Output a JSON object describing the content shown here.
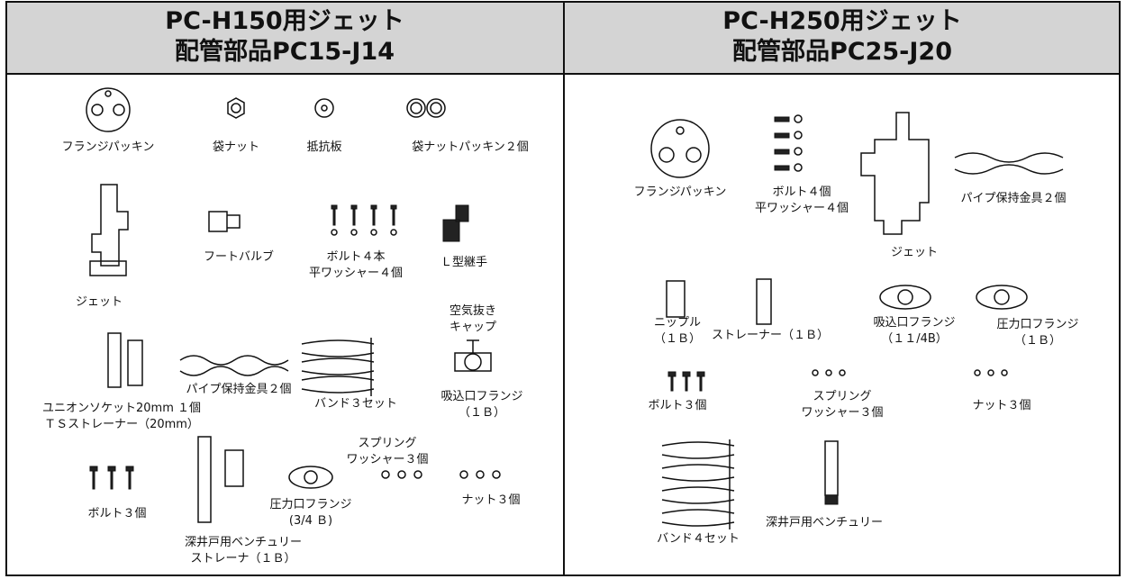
{
  "columns": [
    {
      "header": [
        "PC-H150用ジェット",
        "配管部品PC15-J14"
      ],
      "parts": [
        [
          "フランジパッキン"
        ],
        [
          "袋ナット"
        ],
        [
          "抵抗板"
        ],
        [
          "袋ナットパッキン２個"
        ],
        [
          "フートバルブ"
        ],
        [
          "ボルト４本",
          "平ワッシャー４個"
        ],
        [
          "Ｌ型継手"
        ],
        [
          "ジェット"
        ],
        [
          "空気抜き",
          "キャップ"
        ],
        [
          "パイプ保持金具２個"
        ],
        [
          "バンド３セット"
        ],
        [
          "吸込口フランジ",
          "（１Ｂ）"
        ],
        [
          "ユニオンソケット20mm １個",
          "ＴＳストレーナー（20mm）"
        ],
        [
          "スプリング",
          "ワッシャー３個"
        ],
        [
          "ボルト３個"
        ],
        [
          "圧力口フランジ",
          "(3/4 Ｂ)"
        ],
        [
          "ナット３個"
        ],
        [
          "深井戸用ベンチュリー",
          "ストレーナ（１Ｂ）"
        ]
      ]
    },
    {
      "header": [
        "PC-H250用ジェット",
        "配管部品PC25-J20"
      ],
      "parts": [
        [
          "フランジパッキン"
        ],
        [
          "ボルト４個",
          "平ワッシャー４個"
        ],
        [
          "パイプ保持金具２個"
        ],
        [
          "ジェット"
        ],
        [
          "ニップル",
          "（１Ｂ）"
        ],
        [
          "ストレーナー（１Ｂ）"
        ],
        [
          "吸込口フランジ",
          "（１１/4B）"
        ],
        [
          "圧力口フランジ",
          "（１Ｂ）"
        ],
        [
          "ボルト３個"
        ],
        [
          "スプリング",
          "ワッシャー３個"
        ],
        [
          "ナット３個"
        ],
        [
          "バンド４セット"
        ],
        [
          "深井戸用ベンチュリー"
        ]
      ]
    }
  ]
}
